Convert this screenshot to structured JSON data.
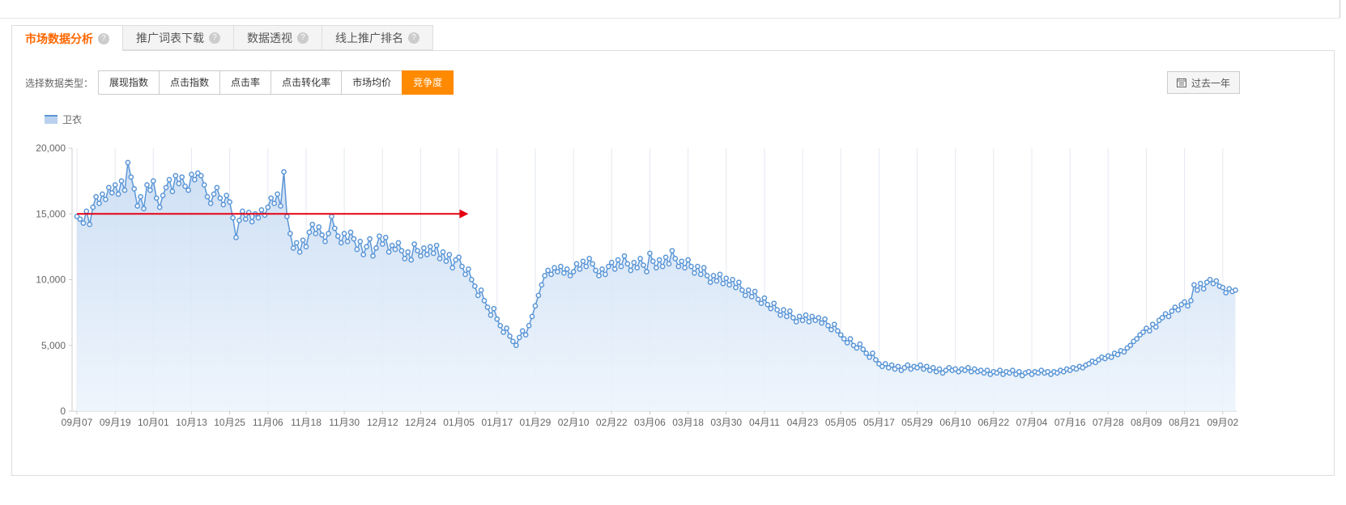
{
  "icons": {
    "help_glyph": "?"
  },
  "colors": {
    "tab_active_text": "#ff6600",
    "accent_orange": "#ff8a00",
    "line_blue": "#5b96d6",
    "arrow_red": "#e60012"
  },
  "header": {
    "tabs": [
      {
        "label": "市场数据分析",
        "active": true
      },
      {
        "label": "推广词表下载",
        "active": false
      },
      {
        "label": "数据透视",
        "active": false
      },
      {
        "label": "线上推广排名",
        "active": false
      }
    ]
  },
  "controls": {
    "label": "选择数据类型：",
    "buttons": [
      {
        "label": "展现指数",
        "active": false
      },
      {
        "label": "点击指数",
        "active": false
      },
      {
        "label": "点击率",
        "active": false
      },
      {
        "label": "点击转化率",
        "active": false
      },
      {
        "label": "市场均价",
        "active": false
      },
      {
        "label": "竞争度",
        "active": true
      }
    ],
    "date_range_label": "过去一年"
  },
  "legend": {
    "name": "卫衣"
  },
  "chart_data": {
    "type": "line",
    "title": "",
    "xlabel": "",
    "ylabel": "",
    "ylim": [
      0,
      20000
    ],
    "y_tick_labels": [
      "0",
      "5,000",
      "10,000",
      "15,000",
      "20,000"
    ],
    "x_tick_labels": [
      "09月07",
      "09月19",
      "10月01",
      "10月13",
      "10月25",
      "11月06",
      "11月18",
      "11月30",
      "12月12",
      "12月24",
      "01月05",
      "01月17",
      "01月29",
      "02月10",
      "02月22",
      "03月06",
      "03月18",
      "03月30",
      "04月11",
      "04月23",
      "05月05",
      "05月17",
      "05月29",
      "06月10",
      "06月22",
      "07月04",
      "07月16",
      "07月28",
      "08月09",
      "08月21",
      "09月02"
    ],
    "days_per_tick": 12,
    "grid": "vertical-gridlines",
    "legend_position": "top-left",
    "line_color": "#5b96d6",
    "marker": "hollow-circle",
    "area_color_top": "#c9dcf3",
    "area_color_bottom": "#edf4fc",
    "annotation": {
      "type": "horizontal-arrow",
      "y": 15000,
      "from_day": 0,
      "to_day": 123,
      "color": "#e60012"
    },
    "series": [
      {
        "name": "卫衣",
        "values": [
          14800,
          14600,
          14300,
          15200,
          14200,
          15500,
          16300,
          15800,
          16500,
          16100,
          17000,
          16600,
          17200,
          16500,
          17500,
          16800,
          18900,
          17800,
          16900,
          15600,
          16300,
          15400,
          17200,
          16800,
          17500,
          16200,
          15500,
          16400,
          17000,
          17600,
          16700,
          17900,
          17300,
          17800,
          17100,
          16800,
          18000,
          17600,
          18100,
          17900,
          17200,
          16300,
          15800,
          16500,
          17000,
          16200,
          15700,
          16400,
          15900,
          14700,
          13200,
          14500,
          15200,
          14600,
          15100,
          14400,
          15000,
          14700,
          15300,
          14900,
          15500,
          16200,
          15800,
          16500,
          15600,
          18200,
          14800,
          13500,
          12400,
          12800,
          12100,
          13000,
          12500,
          13600,
          14200,
          13500,
          14000,
          13400,
          12900,
          13500,
          14800,
          13900,
          13300,
          12800,
          13500,
          12900,
          13600,
          13100,
          12300,
          12900,
          11900,
          12500,
          13100,
          11800,
          12400,
          13300,
          12700,
          13200,
          12100,
          12600,
          12300,
          12800,
          12200,
          11600,
          12100,
          11500,
          12700,
          12200,
          11800,
          12400,
          11900,
          12500,
          12000,
          12600,
          11600,
          12100,
          11400,
          11900,
          10900,
          11500,
          11700,
          11000,
          10400,
          10800,
          10000,
          9500,
          8800,
          9200,
          8400,
          7900,
          7300,
          7800,
          7000,
          6500,
          6000,
          6300,
          5700,
          5300,
          5000,
          5600,
          6100,
          5800,
          6500,
          7200,
          8000,
          8800,
          9600,
          10300,
          10700,
          10400,
          10900,
          10600,
          11000,
          10500,
          10800,
          10300,
          10600,
          11200,
          10800,
          11400,
          11000,
          11600,
          11200,
          10700,
          10300,
          10800,
          10400,
          11000,
          11300,
          10800,
          11500,
          11000,
          11800,
          11200,
          10700,
          11300,
          10900,
          11600,
          11100,
          10600,
          12000,
          11400,
          10900,
          11500,
          11000,
          11700,
          11200,
          12200,
          11600,
          11000,
          11400,
          10900,
          11500,
          11000,
          10500,
          11000,
          10400,
          10900,
          10300,
          9800,
          10300,
          9900,
          10400,
          9700,
          10100,
          9600,
          10000,
          9400,
          9800,
          9200,
          8800,
          9200,
          8700,
          9100,
          8500,
          8200,
          8600,
          8100,
          7800,
          8200,
          7700,
          7300,
          7700,
          7200,
          7600,
          7100,
          6800,
          7200,
          6900,
          7300,
          6800,
          7200,
          6900,
          7100,
          6700,
          7000,
          6500,
          6200,
          6600,
          6100,
          5800,
          5500,
          5200,
          5500,
          5000,
          4800,
          5100,
          4700,
          4400,
          4100,
          4400,
          3900,
          3600,
          3400,
          3600,
          3300,
          3500,
          3200,
          3400,
          3100,
          3300,
          3500,
          3200,
          3400,
          3300,
          3500,
          3200,
          3400,
          3100,
          3300,
          3000,
          3200,
          2900,
          3100,
          3300,
          3100,
          3200,
          3000,
          3200,
          3100,
          3300,
          3000,
          3200,
          3000,
          3100,
          2900,
          3100,
          2800,
          3000,
          2900,
          3100,
          2800,
          3000,
          2900,
          3100,
          2800,
          3000,
          2700,
          2900,
          3000,
          2800,
          3000,
          2900,
          3100,
          2900,
          3000,
          2800,
          3000,
          2900,
          3100,
          3000,
          3200,
          3100,
          3300,
          3200,
          3400,
          3300,
          3500,
          3600,
          3800,
          3700,
          3900,
          4100,
          4000,
          4200,
          4100,
          4400,
          4300,
          4600,
          4500,
          4800,
          5000,
          5300,
          5500,
          5800,
          6000,
          6300,
          6100,
          6600,
          6400,
          6900,
          7100,
          7400,
          7200,
          7600,
          7900,
          7700,
          8100,
          8300,
          8000,
          8400,
          9600,
          9200,
          9700,
          9300,
          9800,
          10000,
          9700,
          9900,
          9500,
          9400,
          9000,
          9300,
          9100,
          9200
        ]
      }
    ]
  }
}
